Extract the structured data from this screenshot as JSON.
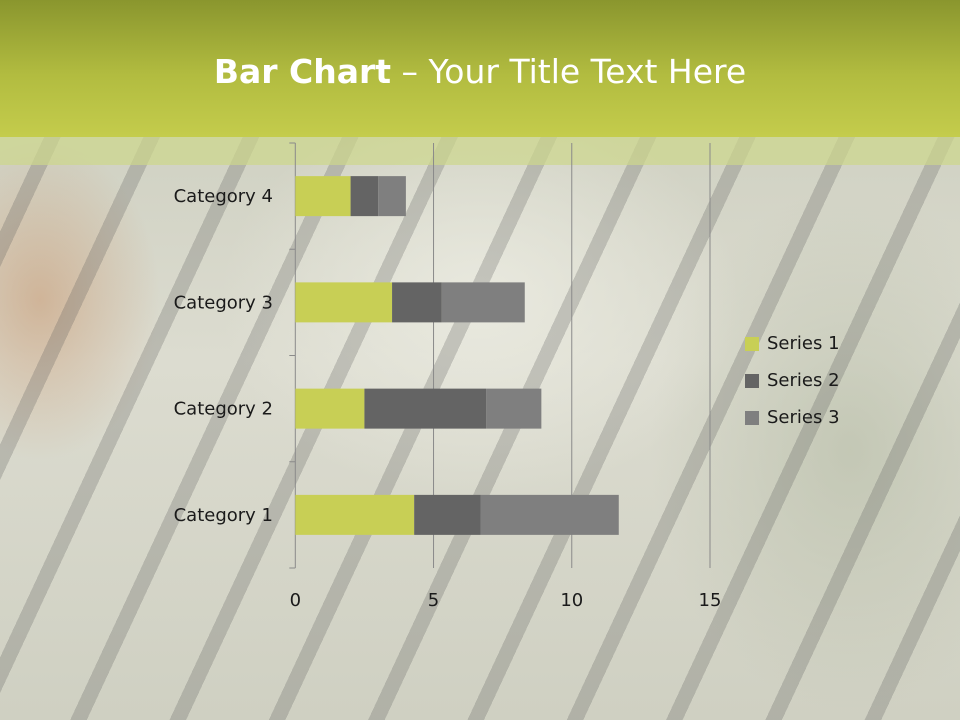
{
  "slide": {
    "title_bold": "Bar Chart",
    "title_rest": " – Your Title Text Here"
  },
  "chart_data": {
    "type": "bar",
    "orientation": "horizontal",
    "stacked": true,
    "categories": [
      "Category 1",
      "Category 2",
      "Category 3",
      "Category 4"
    ],
    "series": [
      {
        "name": "Series 1",
        "values": [
          4.3,
          2.5,
          3.5,
          2.0
        ],
        "color": "#c8cf55"
      },
      {
        "name": "Series 2",
        "values": [
          2.4,
          4.4,
          1.8,
          1.0
        ],
        "color": "#646464"
      },
      {
        "name": "Series 3",
        "values": [
          5.0,
          2.0,
          3.0,
          1.0
        ],
        "color": "#7f7f7f"
      }
    ],
    "xlim": [
      0,
      15
    ],
    "xticks": [
      "0",
      "5",
      "10",
      "15"
    ],
    "grid": true,
    "legend": "right"
  }
}
